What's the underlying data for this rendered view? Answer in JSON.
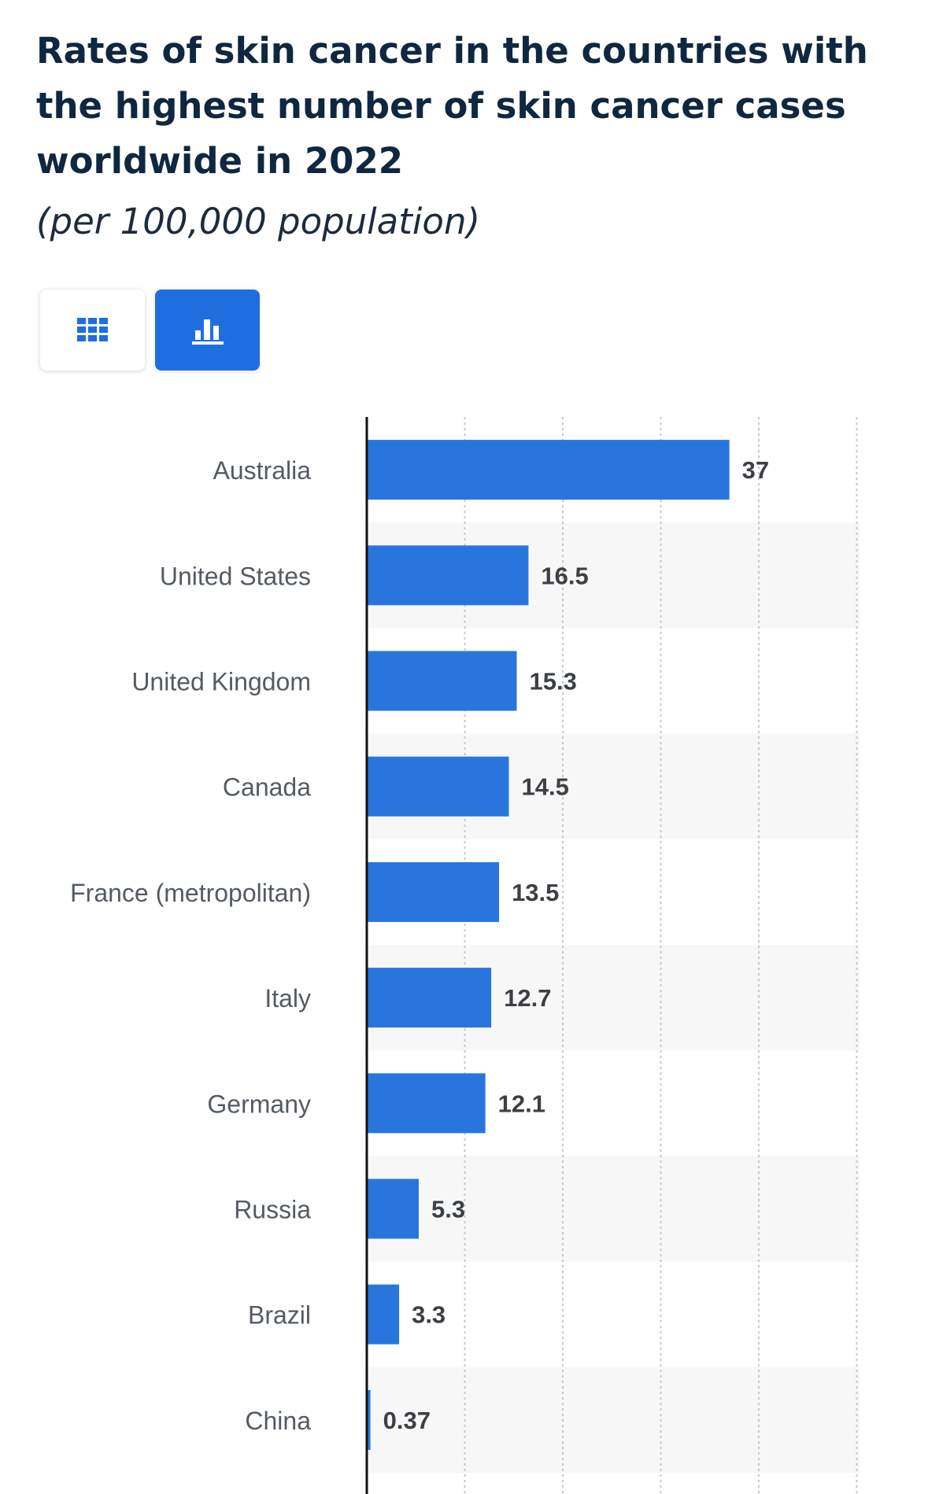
{
  "header": {
    "title": "Rates of skin cancer in the countries with the highest number of skin cancer cases worldwide in 2022",
    "subtitle": "(per 100,000 population)"
  },
  "view_toggle": {
    "table_icon": "grid-icon",
    "chart_icon": "bar-chart-icon",
    "active": "chart",
    "active_color": "#1f6ee0",
    "inactive_icon_color": "#1f6ee0"
  },
  "chart_data": {
    "type": "bar",
    "orientation": "horizontal",
    "categories": [
      "Australia",
      "United States",
      "United Kingdom",
      "Canada",
      "France (metropolitan)",
      "Italy",
      "Germany",
      "Russia",
      "Brazil",
      "China"
    ],
    "values": [
      37,
      16.5,
      15.3,
      14.5,
      13.5,
      12.7,
      12.1,
      5.3,
      3.3,
      0.37
    ],
    "value_labels": [
      "37",
      "16.5",
      "15.3",
      "14.5",
      "13.5",
      "12.7",
      "12.1",
      "5.3",
      "3.3",
      "0.37"
    ],
    "xlim": [
      0,
      50
    ],
    "grid": true,
    "bar_color": "#2876dd",
    "stripe_color": "#f7f7f7"
  }
}
